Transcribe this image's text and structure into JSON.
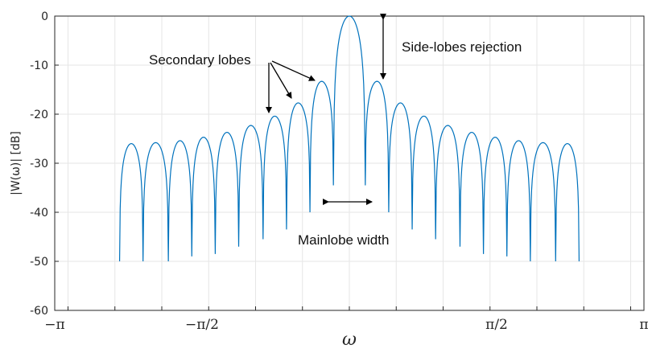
{
  "chart_data": {
    "type": "line",
    "title": "",
    "xlabel": "ω",
    "ylabel": "|W(ω)| [dB]",
    "xlim": [
      -3.14159,
      3.14159
    ],
    "ylim": [
      -60,
      0
    ],
    "yticks": [
      0,
      -10,
      -20,
      -30,
      -40,
      -50,
      -60
    ],
    "ytick_labels": [
      "0",
      "-10",
      "-20",
      "-30",
      "-40",
      "-50",
      "-60"
    ],
    "xticks": [
      -3.14159,
      -1.5708,
      1.5708,
      3.14159
    ],
    "xtick_labels": [
      "−π",
      "−π/2",
      "π/2",
      "π"
    ],
    "grid": true,
    "color": "#0072BD",
    "series": [
      {
        "x": [
          -2.2,
          -1.93,
          -1.68,
          -1.43,
          -1.18,
          -0.92,
          -0.67,
          -0.42,
          -0.17,
          0,
          0.17,
          0.42,
          0.67,
          0.92,
          1.18,
          1.43,
          1.68,
          1.93,
          2.2
        ],
        "values": [
          -26,
          -25.8,
          -25.4,
          -24.7,
          -23.7,
          -22.3,
          -20.4,
          -17.7,
          -13.3,
          0,
          -13.3,
          -17.7,
          -20.4,
          -22.3,
          -23.7,
          -24.7,
          -25.4,
          -25.8,
          -26
        ]
      }
    ],
    "nulls": {
      "x": [
        -2.45,
        -2.2,
        -1.93,
        -1.68,
        -1.43,
        -1.18,
        -0.92,
        -0.67,
        -0.42,
        -0.17,
        0.17,
        0.42,
        0.67,
        0.92,
        1.18,
        1.43,
        1.68,
        1.93,
        2.2,
        2.45
      ],
      "values": [
        -50,
        -50,
        -50,
        -49,
        -48.5,
        -47,
        -45.5,
        -43.5,
        -40,
        -34.5,
        -34.5,
        -40,
        -43.5,
        -45.5,
        -47,
        -48.5,
        -49,
        -50,
        -50,
        -50
      ]
    },
    "annotations": {
      "secondary_lobes": "Secondary lobes",
      "side_lobes_rejection": "Side-lobes rejection",
      "mainlobe_width": "Mainlobe width"
    }
  }
}
